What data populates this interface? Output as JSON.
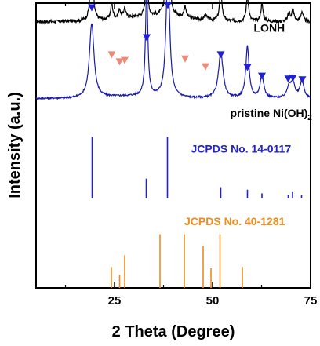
{
  "chart_data": {
    "type": "line",
    "xlabel": "2 Theta (Degree)",
    "ylabel": "Intensity (a.u.)",
    "xlim": [
      5,
      75
    ],
    "xticks": [
      25,
      50,
      75
    ],
    "minor_xticks": [
      12.5,
      37.5,
      62.5
    ],
    "yticks": "none",
    "grid": false,
    "legend": "none",
    "series": [
      {
        "name": "LONH",
        "color": "#000000",
        "baseline": 0.935,
        "noise": 0.006,
        "peaks": [
          {
            "x": 19.2,
            "h": 0.26,
            "w": 0.35
          },
          {
            "x": 24.3,
            "h": 0.05,
            "w": 0.35
          },
          {
            "x": 26.3,
            "h": 0.03,
            "w": 0.3
          },
          {
            "x": 27.6,
            "h": 0.035,
            "w": 0.3
          },
          {
            "x": 33.2,
            "h": 0.17,
            "w": 0.3
          },
          {
            "x": 38.6,
            "h": 0.4,
            "w": 0.4
          },
          {
            "x": 43.0,
            "h": 0.04,
            "w": 0.35
          },
          {
            "x": 48.2,
            "h": 0.02,
            "w": 0.35
          },
          {
            "x": 52.1,
            "h": 0.11,
            "w": 0.35
          },
          {
            "x": 58.9,
            "h": 0.09,
            "w": 0.35
          },
          {
            "x": 62.6,
            "h": 0.06,
            "w": 0.35
          },
          {
            "x": 69.5,
            "h": 0.03,
            "w": 0.35
          },
          {
            "x": 70.5,
            "h": 0.04,
            "w": 0.35
          },
          {
            "x": 72.8,
            "h": 0.035,
            "w": 0.35
          }
        ]
      },
      {
        "name": "pristine Ni(OH)2",
        "color": "#1a1aaa",
        "baseline": 0.665,
        "noise": 0.003,
        "peaks": [
          {
            "x": 19.2,
            "h": 0.26,
            "w": 0.7
          },
          {
            "x": 33.2,
            "h": 0.38,
            "w": 0.35
          },
          {
            "x": 38.6,
            "h": 0.45,
            "w": 0.55
          },
          {
            "x": 52.1,
            "h": 0.16,
            "w": 0.7
          },
          {
            "x": 58.9,
            "h": 0.18,
            "w": 0.5
          },
          {
            "x": 62.6,
            "h": 0.08,
            "w": 0.55
          },
          {
            "x": 69.5,
            "h": 0.04,
            "w": 0.6
          },
          {
            "x": 70.5,
            "h": 0.05,
            "w": 0.6
          },
          {
            "x": 72.8,
            "h": 0.06,
            "w": 0.6
          }
        ]
      }
    ],
    "reference_patterns": [
      {
        "name": "JCPDS No. 14-0117",
        "color": "#2222cc",
        "sticks": [
          {
            "x": 19.3,
            "h": 1.0
          },
          {
            "x": 33.1,
            "h": 0.32
          },
          {
            "x": 38.5,
            "h": 1.0
          },
          {
            "x": 52.1,
            "h": 0.18
          },
          {
            "x": 58.9,
            "h": 0.14
          },
          {
            "x": 62.6,
            "h": 0.08
          },
          {
            "x": 69.3,
            "h": 0.06
          },
          {
            "x": 70.4,
            "h": 0.1
          },
          {
            "x": 72.7,
            "h": 0.05
          }
        ]
      },
      {
        "name": "JCPDS No. 40-1281",
        "color": "#ee8c1e",
        "sticks": [
          {
            "x": 24.2,
            "h": 0.32
          },
          {
            "x": 26.3,
            "h": 0.2
          },
          {
            "x": 27.6,
            "h": 0.5
          },
          {
            "x": 36.6,
            "h": 0.82
          },
          {
            "x": 42.8,
            "h": 0.82
          },
          {
            "x": 47.6,
            "h": 0.64
          },
          {
            "x": 49.6,
            "h": 0.3
          },
          {
            "x": 51.9,
            "h": 0.82
          },
          {
            "x": 57.6,
            "h": 0.32
          }
        ]
      }
    ],
    "markers": [
      {
        "shape": "triangle-down",
        "color": "#1f1fd6",
        "points": [
          {
            "x": 19.2,
            "y": 0.985
          },
          {
            "x": 33.2,
            "y": 0.88
          },
          {
            "x": 38.6,
            "y": 0.993
          },
          {
            "x": 52.1,
            "y": 0.82
          },
          {
            "x": 58.9,
            "y": 0.775
          },
          {
            "x": 62.6,
            "y": 0.745
          },
          {
            "x": 69.3,
            "y": 0.735
          },
          {
            "x": 70.5,
            "y": 0.738
          },
          {
            "x": 72.9,
            "y": 0.732
          }
        ]
      },
      {
        "shape": "triangle-down",
        "color": "#ee8a78",
        "points": [
          {
            "x": 24.3,
            "y": 0.82
          },
          {
            "x": 26.3,
            "y": 0.795
          },
          {
            "x": 27.6,
            "y": 0.8
          },
          {
            "x": 43.0,
            "y": 0.805
          },
          {
            "x": 48.2,
            "y": 0.778
          }
        ]
      }
    ],
    "annotations": [
      {
        "text": "LONH",
        "x": 60.5,
        "y": 0.9,
        "color": "#000000"
      },
      {
        "text": "pristine Ni(OH)",
        "sub": "2",
        "x": 54.5,
        "y": 0.6,
        "color": "#000000"
      },
      {
        "text": "JCPDS No. 14-0117",
        "x": 44.5,
        "y": 0.475,
        "color": "#2222cc"
      },
      {
        "text": "JCPDS No. 40-1281",
        "x": 42.8,
        "y": 0.22,
        "color": "#ee8c1e"
      }
    ]
  }
}
